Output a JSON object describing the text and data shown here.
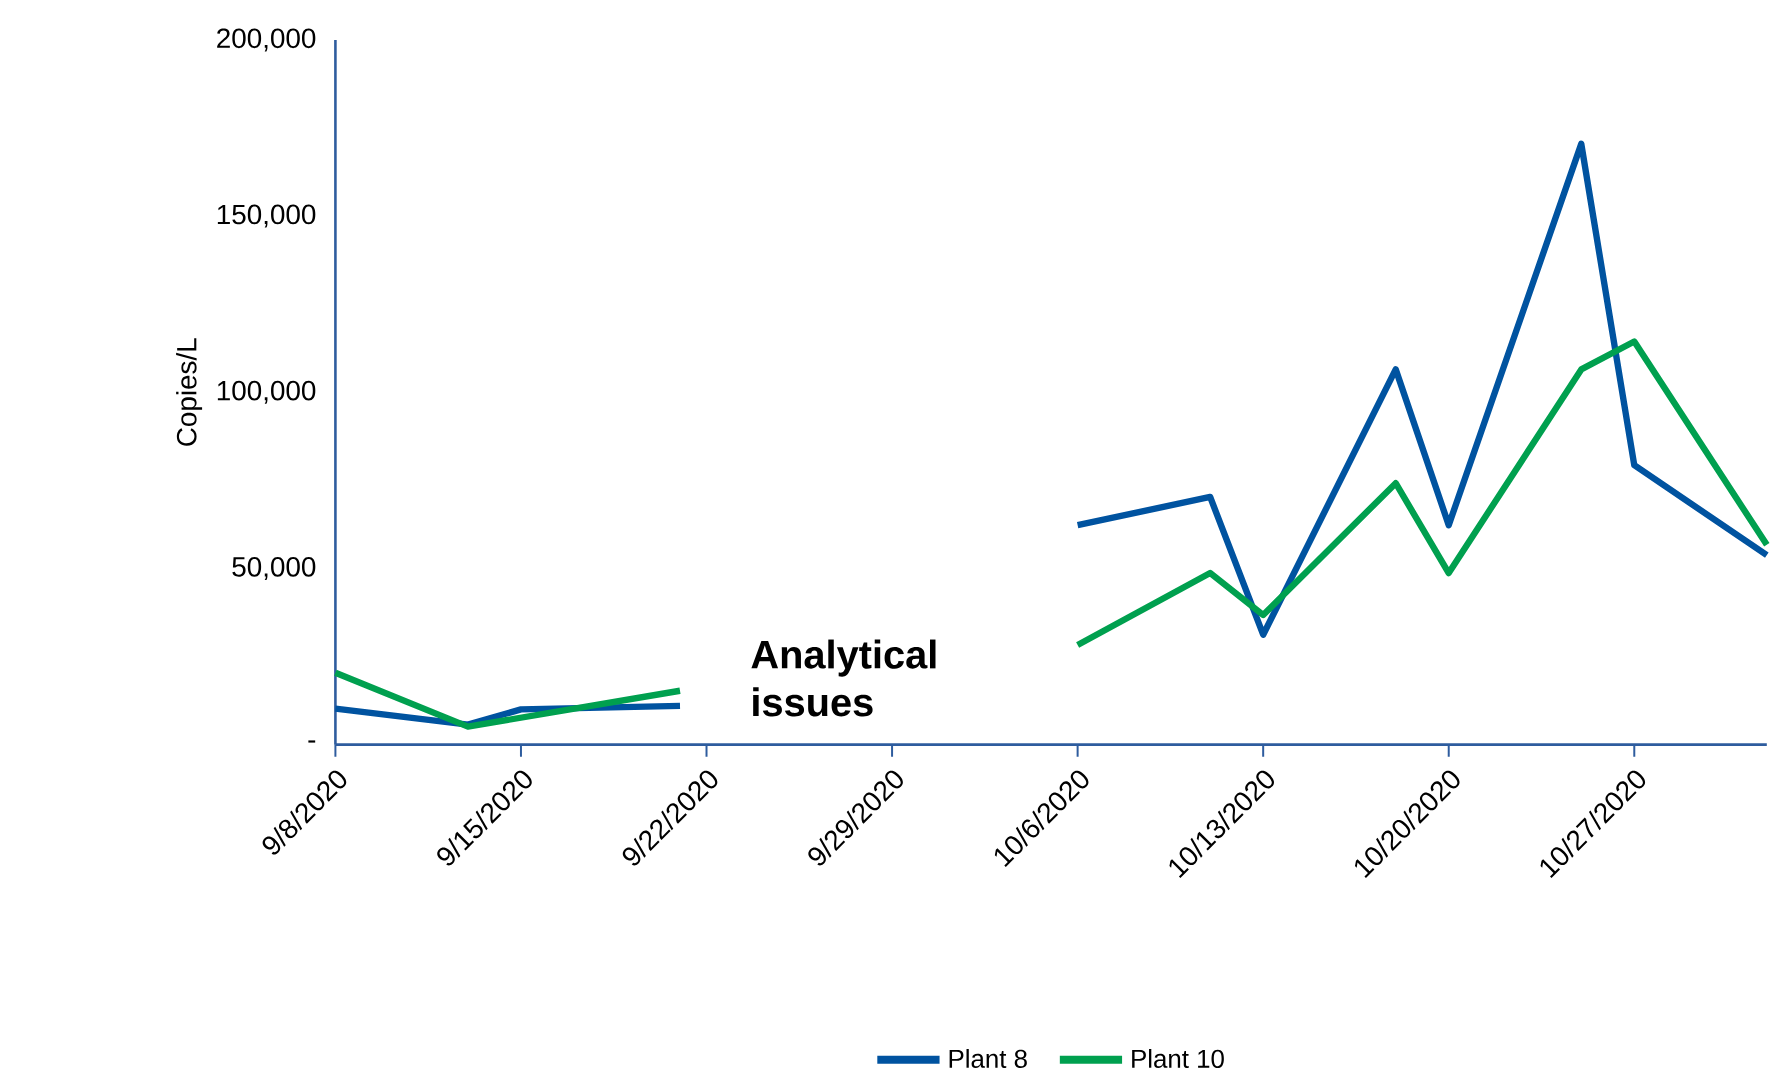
{
  "chart_data": {
    "type": "line",
    "ylabel": "Copies/L",
    "xlim": [
      "2020-09-08",
      "2020-11-01"
    ],
    "xticks": [
      {
        "value": "2020-09-08",
        "label": "9/8/2020"
      },
      {
        "value": "2020-09-15",
        "label": "9/15/2020"
      },
      {
        "value": "2020-09-22",
        "label": "9/22/2020"
      },
      {
        "value": "2020-09-29",
        "label": "9/29/2020"
      },
      {
        "value": "2020-10-06",
        "label": "10/6/2020"
      },
      {
        "value": "2020-10-13",
        "label": "10/13/2020"
      },
      {
        "value": "2020-10-20",
        "label": "10/20/2020"
      },
      {
        "value": "2020-10-27",
        "label": "10/27/2020"
      }
    ],
    "ylim": [
      0,
      200000
    ],
    "yticks": [
      {
        "value": 0,
        "label": "-"
      },
      {
        "value": 50000,
        "label": "50,000"
      },
      {
        "value": 100000,
        "label": "100,000"
      },
      {
        "value": 150000,
        "label": "150,000"
      },
      {
        "value": 200000,
        "label": "200,000"
      }
    ],
    "series": [
      {
        "name": "Plant 8",
        "color": "#0053a0",
        "x": [
          "2020-09-08",
          "2020-09-13",
          "2020-09-15",
          "2020-09-21",
          "2020-09-29",
          "2020-10-06",
          "2020-10-11",
          "2020-10-13",
          "2020-10-18",
          "2020-10-20",
          "2020-10-25",
          "2020-10-27",
          "2020-11-01"
        ],
        "values": [
          10200,
          5700,
          10000,
          11000,
          null,
          62300,
          70300,
          31200,
          106500,
          62300,
          170500,
          79300,
          53800
        ]
      },
      {
        "name": "Plant 10",
        "color": "#00a04f",
        "x": [
          "2020-09-08",
          "2020-09-13",
          "2020-09-21",
          "2020-09-29",
          "2020-10-06",
          "2020-10-11",
          "2020-10-13",
          "2020-10-18",
          "2020-10-20",
          "2020-10-25",
          "2020-10-27",
          "2020-11-01"
        ],
        "values": [
          20400,
          5100,
          15300,
          null,
          28300,
          48700,
          36800,
          74200,
          48700,
          106500,
          114400,
          56700
        ]
      }
    ],
    "annotations": [
      "Analytical issues"
    ],
    "legend": "bottom",
    "grid": false,
    "marker": "none",
    "line_style": "solid"
  }
}
